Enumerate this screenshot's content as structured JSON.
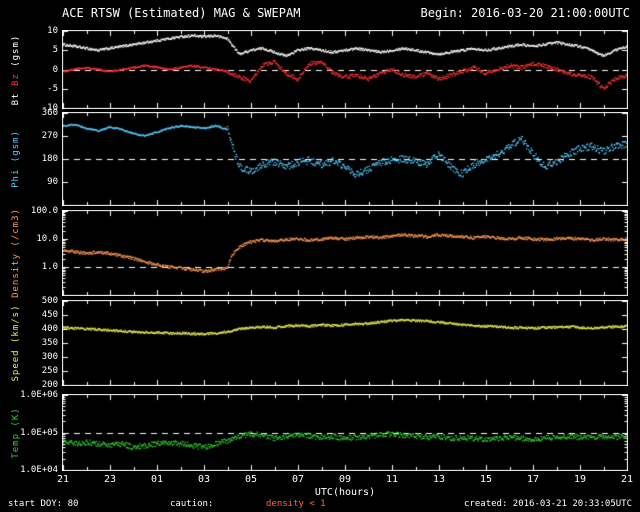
{
  "header": {
    "title": "ACE RTSW (Estimated) MAG & SWEPAM",
    "begin": "Begin: 2016-03-20 21:00:00UTC"
  },
  "footer": {
    "start_doy": "start DOY: 80",
    "caution_label": "caution:",
    "caution_value": "density < 1",
    "caution_color": "#ff6633",
    "created": "created: 2016-03-21 20:33:05UTC"
  },
  "colors": {
    "background": "#000000",
    "frame": "#ffffff",
    "bt": "#ffffff",
    "bz": "#ff3333",
    "phi": "#55ccff",
    "density": "#ff9955",
    "speed": "#eeee55",
    "temp": "#33cc33"
  },
  "x_axis": {
    "label": "UTC(hours)",
    "start_hour_utc": 21,
    "span_hours": 24,
    "sample_step_hours": 0.5,
    "tick_labels": [
      "21",
      "23",
      "01",
      "03",
      "05",
      "07",
      "09",
      "11",
      "13",
      "15",
      "17",
      "19",
      "21"
    ]
  },
  "chart_data": [
    {
      "type": "scatter",
      "scale": "linear",
      "ylim": [
        -10,
        10
      ],
      "dashed_at": 0,
      "ylabel_parts": [
        {
          "text": "Bt ",
          "color": "#ffffff"
        },
        {
          "text": "Bz ",
          "color": "#ff3333"
        },
        {
          "text": "(gsm)",
          "color": "#ffffff"
        }
      ],
      "yticks": [
        {
          "v": 10,
          "label": "10"
        },
        {
          "v": 5,
          "label": "5"
        },
        {
          "v": 0,
          "label": "0"
        },
        {
          "v": -5,
          "label": "-5"
        },
        {
          "v": -10,
          "label": "-10"
        }
      ],
      "series": [
        {
          "name": "Bt",
          "color": "#ffffff",
          "values": [
            6.5,
            6,
            5.5,
            5,
            5.5,
            6,
            6.5,
            7,
            7.5,
            8,
            8.5,
            8.8,
            8.5,
            8.8,
            8,
            4,
            5,
            5.5,
            4.5,
            3.5,
            5,
            5.5,
            5,
            4.5,
            5,
            5.5,
            5,
            4.5,
            5,
            5.5,
            5,
            4.5,
            4,
            4.5,
            5,
            5.5,
            5,
            5.5,
            6,
            6.5,
            6,
            6.5,
            7,
            6.5,
            6,
            5,
            3.5,
            5,
            6
          ]
        },
        {
          "name": "Bz",
          "color": "#ff3333",
          "values": [
            -0.5,
            0,
            0.5,
            0,
            -0.5,
            0,
            0.5,
            1,
            0.5,
            0,
            0.5,
            1,
            0.5,
            0,
            -0.5,
            -2,
            -3,
            1,
            2,
            -1,
            -2.5,
            1.5,
            2,
            -1,
            -2,
            -1.5,
            -2.5,
            -1,
            0,
            -1.5,
            -2,
            -1,
            -2.5,
            -1.5,
            -0.5,
            0.5,
            -1,
            0,
            1,
            0.5,
            1.5,
            1,
            0,
            -1,
            -1.5,
            -2,
            -5,
            -2.5,
            -1.5
          ]
        }
      ]
    },
    {
      "type": "scatter",
      "scale": "linear",
      "ylim": [
        0,
        360
      ],
      "dashed_at": 180,
      "ylabel": "Phi (gsm)",
      "ylabel_color": "#55ccff",
      "yticks": [
        {
          "v": 360,
          "label": "360"
        },
        {
          "v": 270,
          "label": "270"
        },
        {
          "v": 180,
          "label": "180"
        },
        {
          "v": 90,
          "label": "90"
        }
      ],
      "series": [
        {
          "name": "Phi",
          "color": "#55ccff",
          "values": [
            310,
            315,
            300,
            290,
            305,
            295,
            280,
            270,
            285,
            300,
            310,
            305,
            300,
            310,
            295,
            150,
            130,
            160,
            170,
            150,
            165,
            175,
            160,
            170,
            150,
            120,
            140,
            165,
            175,
            180,
            170,
            160,
            200,
            150,
            120,
            160,
            180,
            200,
            230,
            260,
            200,
            150,
            170,
            200,
            220,
            230,
            210,
            230,
            240
          ]
        }
      ]
    },
    {
      "type": "scatter",
      "scale": "log",
      "ylim": [
        0.1,
        100
      ],
      "dashed_at": 1,
      "ylabel": "Density (/cm3)",
      "ylabel_color": "#ff9955",
      "yticks": [
        {
          "v": 100,
          "label": "100.0"
        },
        {
          "v": 10,
          "label": "10.0"
        },
        {
          "v": 1,
          "label": "1.0"
        }
      ],
      "series": [
        {
          "name": "Density",
          "color": "#ff9955",
          "values": [
            4,
            3.5,
            3,
            3.5,
            3,
            2.5,
            2,
            1.5,
            1.2,
            1,
            0.9,
            0.8,
            0.7,
            0.8,
            0.9,
            5,
            8,
            9,
            8.5,
            9.5,
            10,
            9,
            10,
            11,
            10,
            11,
            12,
            11,
            13,
            14,
            13,
            12,
            14,
            13,
            12,
            11,
            12,
            11,
            10,
            11,
            10,
            9.5,
            10,
            10.5,
            10,
            9,
            10,
            9.5,
            10
          ]
        }
      ]
    },
    {
      "type": "scatter",
      "scale": "linear",
      "ylim": [
        200,
        500
      ],
      "dashed_at": null,
      "ylabel": "Speed (km/s)",
      "ylabel_color": "#eeee55",
      "yticks": [
        {
          "v": 500,
          "label": "500"
        },
        {
          "v": 450,
          "label": "450"
        },
        {
          "v": 400,
          "label": "400"
        },
        {
          "v": 350,
          "label": "350"
        },
        {
          "v": 300,
          "label": "300"
        },
        {
          "v": 250,
          "label": "250"
        },
        {
          "v": 200,
          "label": "200"
        }
      ],
      "series": [
        {
          "name": "Speed",
          "color": "#eeee55",
          "values": [
            405,
            402,
            400,
            398,
            395,
            392,
            390,
            388,
            387,
            385,
            385,
            383,
            382,
            385,
            390,
            400,
            405,
            408,
            405,
            410,
            412,
            410,
            415,
            412,
            415,
            418,
            420,
            425,
            430,
            432,
            430,
            428,
            425,
            420,
            415,
            412,
            410,
            408,
            405,
            404,
            403,
            405,
            406,
            408,
            405,
            404,
            406,
            408,
            410
          ]
        }
      ]
    },
    {
      "type": "scatter",
      "scale": "log",
      "ylim": [
        10000,
        1000000
      ],
      "dashed_at": 100000,
      "ylabel": "Temp (K)",
      "ylabel_color": "#33cc33",
      "yticks": [
        {
          "v": 1000000,
          "label": "1.0E+06"
        },
        {
          "v": 100000,
          "label": "1.0E+05"
        },
        {
          "v": 10000,
          "label": "1.0E+04"
        }
      ],
      "series": [
        {
          "name": "Temp",
          "color": "#33cc33",
          "values": [
            60000,
            50000,
            55000,
            50000,
            45000,
            50000,
            40000,
            45000,
            50000,
            55000,
            50000,
            45000,
            40000,
            50000,
            60000,
            80000,
            90000,
            85000,
            70000,
            80000,
            90000,
            80000,
            75000,
            80000,
            70000,
            75000,
            80000,
            85000,
            90000,
            85000,
            80000,
            75000,
            80000,
            70000,
            75000,
            70000,
            65000,
            70000,
            75000,
            70000,
            65000,
            70000,
            75000,
            80000,
            75000,
            70000,
            80000,
            75000,
            80000
          ]
        }
      ]
    }
  ]
}
